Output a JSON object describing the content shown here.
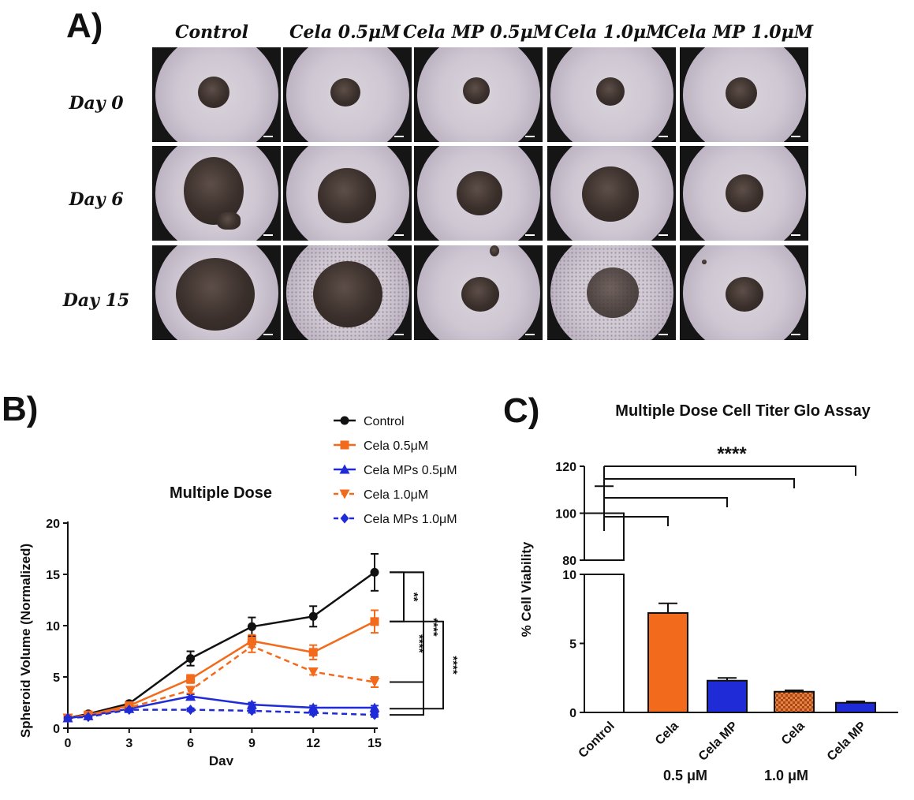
{
  "panel_a": {
    "letter": "A)",
    "columns": [
      "Control",
      "Cela 0.5μM",
      "Cela MP 0.5μM",
      "Cela 1.0μM",
      "Cela MP 1.0μM"
    ],
    "rows": [
      "Day 0",
      "Day 6",
      "Day 15"
    ]
  },
  "panel_b": {
    "letter": "B)",
    "significance": [
      "**",
      "****",
      "****",
      "****"
    ]
  },
  "panel_c": {
    "letter": "C)",
    "significance": "****",
    "dose_labels": [
      "0.5 μM",
      "1.0 μM"
    ]
  },
  "chart_data": [
    {
      "type": "line",
      "title": "Multiple Dose",
      "xlabel": "Day",
      "ylabel": "Spheroid Volume (Normalized)",
      "x": [
        0,
        1,
        3,
        6,
        9,
        12,
        15
      ],
      "xticks": [
        0,
        3,
        6,
        9,
        12,
        15
      ],
      "yticks": [
        0,
        5,
        10,
        15,
        20
      ],
      "xlim": [
        0,
        15
      ],
      "ylim": [
        0,
        20
      ],
      "series": [
        {
          "name": "Control",
          "color": "#111111",
          "marker": "circle",
          "dashed": false,
          "values": [
            1.0,
            1.4,
            2.4,
            6.8,
            9.9,
            10.9,
            15.2
          ],
          "errors": [
            0.1,
            0.15,
            0.2,
            0.7,
            0.9,
            1.0,
            1.8
          ]
        },
        {
          "name": "Cela 0.5μM",
          "color": "#f26a1b",
          "marker": "square",
          "dashed": false,
          "values": [
            1.0,
            1.3,
            2.2,
            4.8,
            8.5,
            7.4,
            10.4
          ],
          "errors": [
            0.1,
            0.1,
            0.2,
            0.4,
            0.6,
            0.7,
            1.1
          ]
        },
        {
          "name": "Cela MPs 0.5μM",
          "color": "#1e2bd6",
          "marker": "triangle",
          "dashed": false,
          "values": [
            1.0,
            1.2,
            1.9,
            3.1,
            2.3,
            2.0,
            2.0
          ],
          "errors": [
            0.1,
            0.1,
            0.15,
            0.2,
            0.2,
            0.2,
            0.2
          ]
        },
        {
          "name": "Cela 1.0μM",
          "color": "#f26a1b",
          "marker": "triangle-down",
          "dashed": true,
          "values": [
            1.0,
            1.2,
            2.0,
            3.7,
            8.0,
            5.5,
            4.5
          ],
          "errors": [
            0.1,
            0.1,
            0.15,
            0.3,
            0.6,
            0.3,
            0.5
          ]
        },
        {
          "name": "Cela MPs 1.0μM",
          "color": "#1e2bd6",
          "marker": "diamond",
          "dashed": true,
          "values": [
            1.0,
            1.1,
            1.8,
            1.8,
            1.7,
            1.5,
            1.3
          ],
          "errors": [
            0.1,
            0.1,
            0.1,
            0.15,
            0.2,
            0.2,
            0.2
          ]
        }
      ]
    },
    {
      "type": "bar",
      "title": "Multiple Dose Cell Titer Glo Assay",
      "ylabel": "% Cell Viability",
      "categories": [
        "Control",
        "Cela",
        "Cela MP",
        "Cela",
        "Cela MP"
      ],
      "values": [
        100,
        7.2,
        2.3,
        1.5,
        0.7
      ],
      "errors": [
        11.5,
        0.7,
        0.2,
        0.1,
        0.1
      ],
      "colors": [
        "#ffffff",
        "#f26a1b",
        "#1e2bd6",
        "#e8823e",
        "#1e2bd6"
      ],
      "patterned": [
        false,
        false,
        false,
        true,
        false
      ],
      "yaxis_broken": true,
      "lower_ticks": [
        0,
        5,
        10
      ],
      "upper_ticks": [
        80,
        100,
        120
      ],
      "lower_range": [
        0,
        10
      ],
      "upper_range": [
        80,
        120
      ]
    }
  ]
}
